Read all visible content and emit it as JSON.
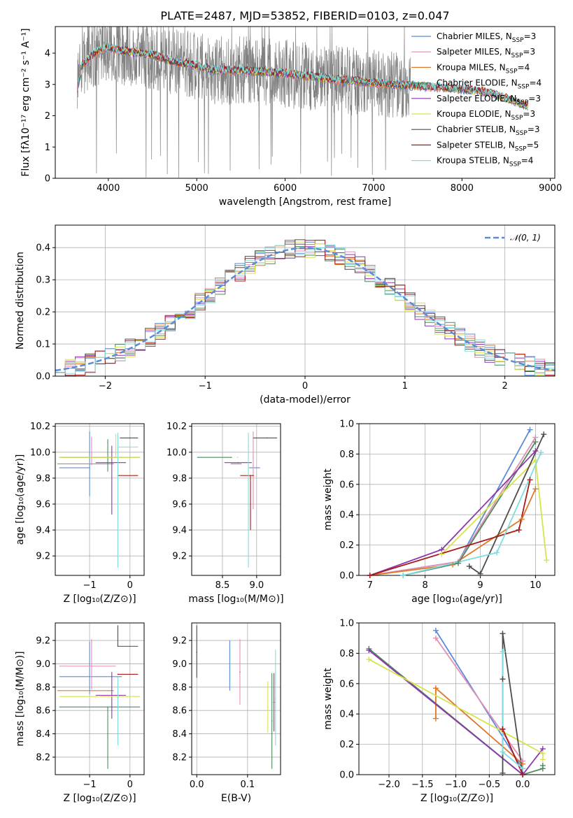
{
  "figure": {
    "title": "PLATE=2487, MJD=53852, FIBERID=0103, z=0.047"
  },
  "colors": {
    "Chabrier MILES": "#5b8bd8",
    "Salpeter MILES": "#e38fb4",
    "Kroupa MILES": "#e0782a",
    "Chabrier ELODIE": "#4f8a5d",
    "Salpeter ELODIE": "#8e35b0",
    "Kroupa ELODIE": "#d7e44c",
    "Chabrier STELIB": "#4d4d4d",
    "Salpeter STELIB": "#a61b1b",
    "Kroupa STELIB": "#7fdde0",
    "data": "#808080",
    "normal": "#5b8bd8"
  },
  "chart_data": [
    {
      "id": "spectrum",
      "type": "line",
      "title": "PLATE=2487, MJD=53852, FIBERID=0103, z=0.047",
      "xlabel": "wavelength [Angstrom, rest frame]",
      "ylabel": "Flux [fλ10⁻¹⁷ erg cm⁻² s⁻¹ A⁻¹]",
      "xlim": [
        3400,
        9050
      ],
      "ylim": [
        0,
        4.85
      ],
      "xticks": [
        4000,
        5000,
        6000,
        7000,
        8000,
        9000
      ],
      "yticks": [
        0,
        1,
        2,
        3,
        4
      ],
      "grid": false,
      "legend_position": "top-right",
      "legend": [
        {
          "series": "Chabrier MILES",
          "label": "Chabrier MILES, N",
          "sub": "SSP",
          "suffix": "=3"
        },
        {
          "series": "Salpeter MILES",
          "label": "Salpeter MILES, N",
          "sub": "SSP",
          "suffix": "=3"
        },
        {
          "series": "Kroupa MILES",
          "label": "Kroupa MILES, N",
          "sub": "SSP",
          "suffix": "=4"
        },
        {
          "series": "Chabrier ELODIE",
          "label": "Chabrier ELODIE, N",
          "sub": "SSP",
          "suffix": "=4"
        },
        {
          "series": "Salpeter ELODIE",
          "label": "Salpeter ELODIE, N",
          "sub": "SSP",
          "suffix": "=3"
        },
        {
          "series": "Kroupa ELODIE",
          "label": "Kroupa ELODIE, N",
          "sub": "SSP",
          "suffix": "=3"
        },
        {
          "series": "Chabrier STELIB",
          "label": "Chabrier STELIB, N",
          "sub": "SSP",
          "suffix": "=3"
        },
        {
          "series": "Salpeter STELIB",
          "label": "Salpeter STELIB, N",
          "sub": "SSP",
          "suffix": "=5"
        },
        {
          "series": "Kroupa STELIB",
          "label": "Kroupa STELIB, N",
          "sub": "SSP",
          "suffix": "=4"
        }
      ],
      "continuum": {
        "x": [
          3650,
          3700,
          3800,
          3900,
          4000,
          4100,
          4300,
          4500,
          4700,
          5000,
          5200,
          5500,
          5800,
          6000,
          6300,
          6600,
          6800,
          7000,
          7200,
          7500,
          7800,
          8000,
          8300,
          8500,
          8750
        ],
        "y": [
          2.8,
          3.6,
          3.9,
          4.1,
          4.2,
          4.1,
          4.0,
          3.95,
          3.75,
          3.6,
          3.45,
          3.45,
          3.4,
          3.35,
          3.25,
          3.15,
          3.1,
          3.05,
          3.0,
          2.95,
          2.9,
          2.85,
          2.75,
          2.55,
          2.3
        ]
      },
      "model_range": [
        3650,
        8750
      ],
      "data_range": [
        3650,
        7420
      ],
      "data_noise": 1.0
    },
    {
      "id": "residuals",
      "type": "bar",
      "xlabel": "(data-model)/error",
      "ylabel": "Normed distribution",
      "xlim": [
        -2.5,
        2.5
      ],
      "ylim": [
        0,
        0.47
      ],
      "xticks": [
        -2,
        -1,
        0,
        1,
        2
      ],
      "yticks": [
        0.0,
        0.1,
        0.2,
        0.3,
        0.4
      ],
      "grid": true,
      "legend_position": "top-right",
      "legend": [
        {
          "label": "𝒩(0, 1)"
        }
      ],
      "bin_width": 0.1,
      "gaussian": {
        "mean": 0,
        "sigma": 1
      }
    },
    {
      "id": "age-vs-Z",
      "type": "scatter",
      "xlabel": "Z [log₁₀(Z/Z⊙)]",
      "ylabel": "age  [log₁₀(age/yr)]",
      "xlim": [
        -1.85,
        0.35
      ],
      "ylim": [
        9.05,
        10.22
      ],
      "xticks": [
        -1,
        0
      ],
      "yticks": [
        9.2,
        9.4,
        9.6,
        9.8,
        10.0,
        10.2
      ],
      "grid": true,
      "points": [
        {
          "series": "Chabrier MILES",
          "x": -1.0,
          "xerr": [
            0.75,
            0.0
          ],
          "y": 9.88,
          "yerr": [
            0.22,
            0.28
          ]
        },
        {
          "series": "Salpeter MILES",
          "x": -0.95,
          "xerr": [
            0.8,
            0.5
          ],
          "y": 9.96,
          "yerr": [
            0.06,
            0.16
          ]
        },
        {
          "series": "Kroupa MILES",
          "x": -1.0,
          "xerr": [
            0.8,
            0.6
          ],
          "y": 9.91,
          "yerr": [
            0.0,
            0.0
          ]
        },
        {
          "series": "Chabrier ELODIE",
          "x": -0.55,
          "xerr": [
            1.2,
            0.8
          ],
          "y": 9.96,
          "yerr": [
            0.11,
            0.14
          ]
        },
        {
          "series": "Salpeter ELODIE",
          "x": -0.45,
          "xerr": [
            0.4,
            0.35
          ],
          "y": 9.92,
          "yerr": [
            0.4,
            0.13
          ]
        },
        {
          "series": "Kroupa ELODIE",
          "x": -0.35,
          "xerr": [
            1.4,
            0.6
          ],
          "y": 9.96,
          "yerr": [
            0.0,
            0.18
          ]
        },
        {
          "series": "Chabrier STELIB",
          "x": 0.0,
          "xerr": [
            0.25,
            0.2
          ],
          "y": 10.11,
          "yerr": [
            0.0,
            0.0
          ]
        },
        {
          "series": "Salpeter STELIB",
          "x": -0.3,
          "xerr": [
            0.0,
            0.5
          ],
          "y": 9.82,
          "yerr": [
            0.0,
            0.0
          ]
        },
        {
          "series": "Kroupa STELIB",
          "x": -0.3,
          "xerr": [
            0.0,
            0.5
          ],
          "y": 10.04,
          "yerr": [
            0.93,
            0.11
          ]
        }
      ]
    },
    {
      "id": "age-vs-mass",
      "type": "scatter",
      "xlabel": "mass [log₁₀(M/M⊙)]",
      "xlim": [
        8.05,
        9.35
      ],
      "ylim": [
        9.05,
        10.22
      ],
      "xticks": [
        8.5,
        9.0
      ],
      "yticks": [
        9.2,
        9.4,
        9.6,
        9.8,
        10.0,
        10.2
      ],
      "grid": true,
      "points": [
        {
          "series": "Chabrier MILES",
          "x": 8.9,
          "xerr": [
            0.0,
            0.15
          ],
          "y": 9.88,
          "yerr": [
            0.0,
            0.0
          ]
        },
        {
          "series": "Salpeter MILES",
          "x": 8.95,
          "xerr": [
            0.0,
            0.0
          ],
          "y": 9.96,
          "yerr": [
            0.4,
            0.2
          ]
        },
        {
          "series": "Kroupa MILES",
          "x": 8.77,
          "xerr": [
            0.15,
            0.0
          ],
          "y": 9.91,
          "yerr": [
            0.0,
            0.0
          ]
        },
        {
          "series": "Chabrier ELODIE",
          "x": 8.63,
          "xerr": [
            0.5,
            0.0
          ],
          "y": 9.96,
          "yerr": [
            0.0,
            0.0
          ]
        },
        {
          "series": "Salpeter ELODIE",
          "x": 8.73,
          "xerr": [
            0.2,
            0.2
          ],
          "y": 9.92,
          "yerr": [
            0.0,
            0.0
          ]
        },
        {
          "series": "Kroupa ELODIE",
          "x": 8.72,
          "xerr": [
            0.0,
            0.0
          ],
          "y": 9.96,
          "yerr": [
            0.0,
            0.0
          ]
        },
        {
          "series": "Chabrier STELIB",
          "x": 9.15,
          "xerr": [
            0.2,
            0.15
          ],
          "y": 10.11,
          "yerr": [
            0.0,
            0.0
          ]
        },
        {
          "series": "Salpeter STELIB",
          "x": 8.91,
          "xerr": [
            0.15,
            0.05
          ],
          "y": 9.82,
          "yerr": [
            0.42,
            0.0
          ]
        },
        {
          "series": "Kroupa STELIB",
          "x": 8.88,
          "xerr": [
            0.0,
            0.0
          ],
          "y": 10.04,
          "yerr": [
            0.93,
            0.11
          ]
        }
      ]
    },
    {
      "id": "massweight-vs-age",
      "type": "line",
      "xlabel": "age  [log₁₀(age/yr)]",
      "ylabel": "mass weight",
      "xlim": [
        6.8,
        10.35
      ],
      "ylim": [
        0,
        1.0
      ],
      "xticks": [
        7,
        8,
        9,
        10
      ],
      "yticks": [
        0.0,
        0.2,
        0.4,
        0.6,
        0.8,
        1.0
      ],
      "grid": true,
      "series": [
        {
          "name": "Chabrier MILES",
          "x": [
            7.0,
            8.6,
            9.9
          ],
          "y": [
            0.0,
            0.09,
            0.96
          ]
        },
        {
          "name": "Salpeter MILES",
          "x": [
            7.0,
            8.6,
            10.0
          ],
          "y": [
            0.0,
            0.09,
            0.91
          ]
        },
        {
          "name": "Kroupa MILES",
          "x": [
            7.0,
            8.5,
            9.75,
            10.0
          ],
          "y": [
            0.0,
            0.07,
            0.37,
            0.57
          ]
        },
        {
          "name": "Chabrier ELODIE",
          "x": [
            7.6,
            8.6,
            10.0
          ],
          "y": [
            0.0,
            0.08,
            0.88
          ]
        },
        {
          "name": "Salpeter ELODIE",
          "x": [
            7.0,
            8.3,
            10.0
          ],
          "y": [
            0.0,
            0.17,
            0.82
          ]
        },
        {
          "name": "Kroupa ELODIE",
          "x": [
            8.3,
            10.0,
            10.2
          ],
          "y": [
            0.14,
            0.76,
            0.1
          ]
        },
        {
          "name": "Chabrier STELIB",
          "x": [
            8.8,
            9.0,
            10.15
          ],
          "y": [
            0.06,
            0.01,
            0.93
          ]
        },
        {
          "name": "Salpeter STELIB",
          "x": [
            7.0,
            9.7,
            9.9
          ],
          "y": [
            0.0,
            0.3,
            0.63
          ]
        },
        {
          "name": "Kroupa STELIB",
          "x": [
            7.6,
            9.3,
            10.1
          ],
          "y": [
            0.0,
            0.15,
            0.81
          ]
        }
      ]
    },
    {
      "id": "mass-vs-Z",
      "type": "scatter",
      "xlabel": "Z [log₁₀(Z/Z⊙)]",
      "ylabel": "mass [log₁₀(M/M⊙)]",
      "xlim": [
        -1.85,
        0.35
      ],
      "ylim": [
        8.05,
        9.35
      ],
      "xticks": [
        -1,
        0
      ],
      "yticks": [
        8.2,
        8.4,
        8.6,
        8.8,
        9.0,
        9.2
      ],
      "grid": true,
      "points": [
        {
          "series": "Chabrier MILES",
          "x": -1.0,
          "xerr": [
            0.75,
            0.8
          ],
          "y": 8.89,
          "yerr": [
            0.15,
            0.3
          ]
        },
        {
          "series": "Salpeter MILES",
          "x": -0.95,
          "xerr": [
            0.8,
            0.6
          ],
          "y": 8.98,
          "yerr": [
            0.2,
            0.23
          ]
        },
        {
          "series": "Kroupa MILES",
          "x": -1.0,
          "xerr": [
            0.8,
            0.6
          ],
          "y": 8.77,
          "yerr": [
            0.0,
            0.0
          ]
        },
        {
          "series": "Chabrier ELODIE",
          "x": -0.55,
          "xerr": [
            1.2,
            0.8
          ],
          "y": 8.63,
          "yerr": [
            0.53,
            0.0
          ]
        },
        {
          "series": "Salpeter ELODIE",
          "x": -0.45,
          "xerr": [
            0.4,
            0.35
          ],
          "y": 8.73,
          "yerr": [
            0.2,
            0.2
          ]
        },
        {
          "series": "Kroupa ELODIE",
          "x": -0.35,
          "xerr": [
            1.4,
            0.6
          ],
          "y": 8.72,
          "yerr": [
            0.0,
            0.0
          ]
        },
        {
          "series": "Chabrier STELIB",
          "x": -0.3,
          "xerr": [
            0.0,
            0.5
          ],
          "y": 9.15,
          "yerr": [
            0.0,
            0.18
          ]
        },
        {
          "series": "Salpeter STELIB",
          "x": -0.3,
          "xerr": [
            0.0,
            0.5
          ],
          "y": 8.91,
          "yerr": [
            0.0,
            0.0
          ]
        },
        {
          "series": "Kroupa STELIB",
          "x": -0.3,
          "xerr": [
            0.0,
            0.0
          ],
          "y": 8.88,
          "yerr": [
            0.58,
            0.0
          ]
        }
      ]
    },
    {
      "id": "mass-vs-EBV",
      "type": "scatter",
      "xlabel": "E(B-V)",
      "xlim": [
        -0.01,
        0.165
      ],
      "ylim": [
        8.05,
        9.35
      ],
      "xticks": [
        0.0,
        0.1
      ],
      "yticks": [
        8.2,
        8.4,
        8.6,
        8.8,
        9.0,
        9.2
      ],
      "grid": true,
      "points": [
        {
          "series": "Chabrier MILES",
          "x": 0.065,
          "y": 8.97,
          "yerr": [
            0.2,
            0.23
          ]
        },
        {
          "series": "Salpeter MILES",
          "x": 0.085,
          "y": 8.93,
          "yerr": [
            0.28,
            0.28
          ]
        },
        {
          "series": "Kroupa MILES",
          "x": 0.085,
          "y": 8.93,
          "yerr": [
            0.0,
            0.0
          ]
        },
        {
          "series": "Chabrier ELODIE",
          "x": 0.148,
          "y": 8.51,
          "yerr": [
            0.41,
            0.41
          ]
        },
        {
          "series": "Salpeter ELODIE",
          "x": 0.152,
          "y": 8.67,
          "yerr": [
            0.25,
            0.25
          ]
        },
        {
          "series": "Kroupa ELODIE",
          "x": 0.14,
          "y": 8.63,
          "yerr": [
            0.22,
            0.22
          ]
        },
        {
          "series": "Chabrier STELIB",
          "x": 0.0,
          "y": 9.1,
          "yerr": [
            0.22,
            0.23
          ]
        },
        {
          "series": "Salpeter STELIB",
          "x": 0.152,
          "y": 8.67,
          "yerr": [
            0.0,
            0.0
          ]
        },
        {
          "series": "Kroupa STELIB",
          "x": 0.155,
          "y": 8.7,
          "yerr": [
            0.4,
            0.42
          ]
        }
      ]
    },
    {
      "id": "massweight-vs-Z",
      "type": "line",
      "xlabel": "Z [log₁₀(Z/Z⊙)]",
      "ylabel": "mass weight",
      "xlim": [
        -2.45,
        0.48
      ],
      "ylim": [
        0,
        1.0
      ],
      "xticks": [
        -2.0,
        -1.5,
        -1.0,
        -0.5,
        0.0
      ],
      "yticks": [
        0.0,
        0.2,
        0.4,
        0.6,
        0.8,
        1.0
      ],
      "grid": true,
      "series": [
        {
          "name": "Chabrier MILES",
          "x": [
            -1.3,
            0.0
          ],
          "y": [
            0.95,
            0.04
          ]
        },
        {
          "name": "Salpeter MILES",
          "x": [
            -1.3,
            0.0
          ],
          "y": [
            0.9,
            0.09
          ]
        },
        {
          "name": "Kroupa MILES",
          "x": [
            -1.3,
            -1.3,
            0.0
          ],
          "y": [
            0.37,
            0.57,
            0.07
          ]
        },
        {
          "name": "Chabrier ELODIE",
          "x": [
            -2.3,
            0.0,
            0.3,
            0.3
          ],
          "y": [
            0.83,
            0.0,
            0.04,
            0.06
          ]
        },
        {
          "name": "Salpeter ELODIE",
          "x": [
            -2.3,
            0.0,
            0.3
          ],
          "y": [
            0.82,
            0.0,
            0.17
          ]
        },
        {
          "name": "Kroupa ELODIE",
          "x": [
            -2.3,
            0.3,
            0.3
          ],
          "y": [
            0.76,
            0.14,
            0.1
          ]
        },
        {
          "name": "Chabrier STELIB",
          "x": [
            -0.3,
            -0.3,
            -0.3,
            0.0
          ],
          "y": [
            0.01,
            0.63,
            0.93,
            0.0
          ]
        },
        {
          "name": "Salpeter STELIB",
          "x": [
            -0.3,
            -0.3,
            0.0
          ],
          "y": [
            0.3,
            0.3,
            0.0
          ]
        },
        {
          "name": "Kroupa STELIB",
          "x": [
            -0.3,
            -0.3,
            0.0
          ],
          "y": [
            0.81,
            0.15,
            0.04
          ]
        }
      ]
    }
  ]
}
